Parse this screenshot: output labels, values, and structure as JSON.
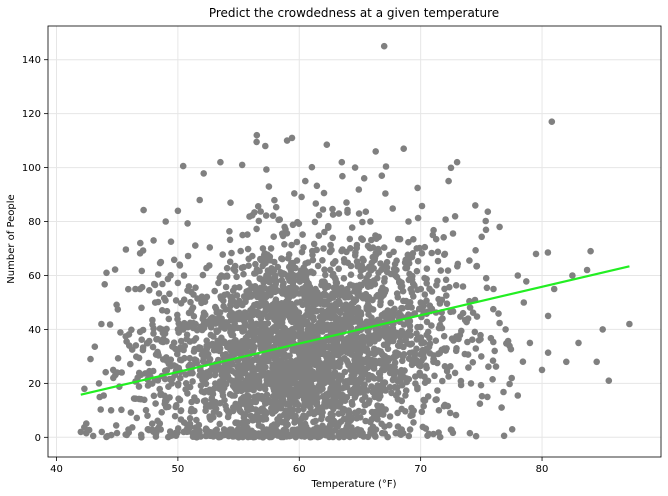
{
  "chart_data": {
    "type": "scatter",
    "title": "Predict the crowdedness at a given temperature",
    "xlabel": "Temperature (°F)",
    "ylabel": "Number of People",
    "xlim": [
      39.3,
      89.8
    ],
    "ylim": [
      -7.3,
      152.5
    ],
    "xticks": [
      40,
      50,
      60,
      70,
      80
    ],
    "yticks": [
      0,
      20,
      40,
      60,
      80,
      100,
      120,
      140
    ],
    "grid": true,
    "legend": "none",
    "colors": {
      "points": "#808080",
      "regression": "#22ee22",
      "grid": "#e6e6e6"
    },
    "series": [
      {
        "type": "scatter",
        "values_sample": [
          {
            "x": 42.0,
            "y": 2
          },
          {
            "x": 42.3,
            "y": 18
          },
          {
            "x": 42.8,
            "y": 29
          },
          {
            "x": 43.5,
            "y": 20
          },
          {
            "x": 43.7,
            "y": 42
          },
          {
            "x": 44.5,
            "y": 10
          },
          {
            "x": 45.0,
            "y": 24
          },
          {
            "x": 46.0,
            "y": 34
          },
          {
            "x": 46.5,
            "y": 55
          },
          {
            "x": 47.0,
            "y": 48
          },
          {
            "x": 47.5,
            "y": 8
          },
          {
            "x": 48.0,
            "y": 73
          },
          {
            "x": 48.6,
            "y": 65
          },
          {
            "x": 49.0,
            "y": 80
          },
          {
            "x": 49.5,
            "y": 20
          },
          {
            "x": 50.0,
            "y": 84
          },
          {
            "x": 50.5,
            "y": 60
          },
          {
            "x": 51.0,
            "y": 5
          },
          {
            "x": 51.8,
            "y": 88
          },
          {
            "x": 52.0,
            "y": 40
          },
          {
            "x": 53.5,
            "y": 102
          },
          {
            "x": 54.5,
            "y": 30
          },
          {
            "x": 55.0,
            "y": 0
          },
          {
            "x": 55.3,
            "y": 101
          },
          {
            "x": 56.5,
            "y": 112
          },
          {
            "x": 57.2,
            "y": 108
          },
          {
            "x": 58.0,
            "y": 58
          },
          {
            "x": 59.0,
            "y": 110
          },
          {
            "x": 59.4,
            "y": 111
          },
          {
            "x": 60.0,
            "y": 33
          },
          {
            "x": 60.5,
            "y": 95
          },
          {
            "x": 61.0,
            "y": 2
          },
          {
            "x": 62.0,
            "y": 70
          },
          {
            "x": 63.0,
            "y": 15
          },
          {
            "x": 63.5,
            "y": 102
          },
          {
            "x": 64.6,
            "y": 100
          },
          {
            "x": 65.0,
            "y": 45
          },
          {
            "x": 66.3,
            "y": 106
          },
          {
            "x": 66.8,
            "y": 97
          },
          {
            "x": 67.0,
            "y": 145
          },
          {
            "x": 67.5,
            "y": 25
          },
          {
            "x": 68.0,
            "y": 62
          },
          {
            "x": 68.6,
            "y": 107
          },
          {
            "x": 69.0,
            "y": 80
          },
          {
            "x": 70.0,
            "y": 50
          },
          {
            "x": 70.5,
            "y": 38
          },
          {
            "x": 71.0,
            "y": 75
          },
          {
            "x": 71.5,
            "y": 10
          },
          {
            "x": 72.0,
            "y": 68
          },
          {
            "x": 72.3,
            "y": 95
          },
          {
            "x": 73.0,
            "y": 102
          },
          {
            "x": 73.5,
            "y": 46
          },
          {
            "x": 74.5,
            "y": 86
          },
          {
            "x": 75.0,
            "y": 30
          },
          {
            "x": 75.5,
            "y": 15
          },
          {
            "x": 76.0,
            "y": 55
          },
          {
            "x": 76.5,
            "y": 78
          },
          {
            "x": 77.0,
            "y": 40
          },
          {
            "x": 77.5,
            "y": 22
          },
          {
            "x": 78.0,
            "y": 60
          },
          {
            "x": 78.5,
            "y": 50
          },
          {
            "x": 79.0,
            "y": 35
          },
          {
            "x": 79.5,
            "y": 68
          },
          {
            "x": 80.0,
            "y": 25
          },
          {
            "x": 80.5,
            "y": 45
          },
          {
            "x": 80.8,
            "y": 117
          },
          {
            "x": 81.0,
            "y": 55
          },
          {
            "x": 82.0,
            "y": 28
          },
          {
            "x": 82.5,
            "y": 60
          },
          {
            "x": 83.0,
            "y": 35
          },
          {
            "x": 84.0,
            "y": 69
          },
          {
            "x": 84.5,
            "y": 28
          },
          {
            "x": 85.0,
            "y": 40
          },
          {
            "x": 85.5,
            "y": 21
          },
          {
            "x": 87.2,
            "y": 42
          }
        ]
      },
      {
        "type": "line",
        "x": [
          42.0,
          87.2
        ],
        "y": [
          15.8,
          63.4
        ]
      }
    ]
  }
}
